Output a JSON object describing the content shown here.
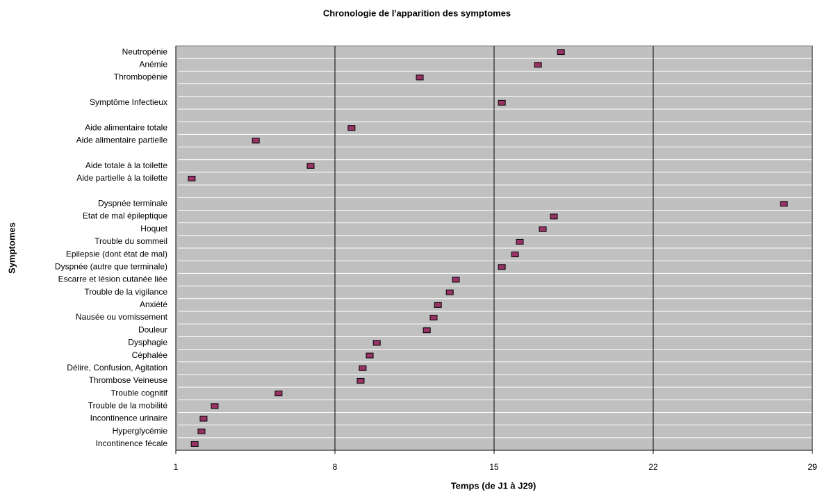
{
  "chart_data": {
    "type": "dot",
    "title": "Chronologie de l'apparition des symptomes",
    "x_label": "Temps (de J1 à J29)",
    "y_label": "Symptomes",
    "categories": [
      "Neutropénie",
      "Anémie",
      "Thrombopénie",
      null,
      "Symptôme Infectieux",
      null,
      "Aide alimentaire totale",
      "Aide alimentaire partielle",
      null,
      "Aide totale à la toilette",
      "Aide partielle à la toilette",
      null,
      "Dyspnée terminale",
      "Etat de mal épileptique",
      "Hoquet",
      "Trouble du sommeil",
      "Epilepsie (dont état de mal)",
      "Dyspnée (autre que terminale)",
      "Escarre et lésion cutanée liée",
      "Trouble de la vigilance",
      "Anxiété",
      "Nausée ou vomissement",
      "Douleur",
      "Dysphagie",
      "Céphalée",
      "Délire, Confusion, Agitation",
      "Thrombose Veineuse",
      "Trouble cognitif",
      "Trouble de la mobilité",
      "Incontinence urinaire",
      "Hyperglycémie",
      "Incontinence fécale"
    ],
    "values": [
      17.94,
      16.93,
      11.73,
      null,
      15.34,
      null,
      8.73,
      4.52,
      null,
      6.93,
      1.7,
      null,
      27.75,
      17.63,
      17.14,
      16.13,
      15.92,
      15.34,
      13.32,
      13.05,
      12.53,
      12.34,
      12.04,
      9.84,
      9.53,
      9.22,
      9.13,
      5.52,
      2.71,
      2.22,
      2.13,
      1.83
    ],
    "color": "#993366",
    "background": "#c0c0c0",
    "xlim": [
      1,
      29
    ],
    "xticks": [
      1,
      8,
      15,
      22,
      29
    ],
    "grid": true
  }
}
